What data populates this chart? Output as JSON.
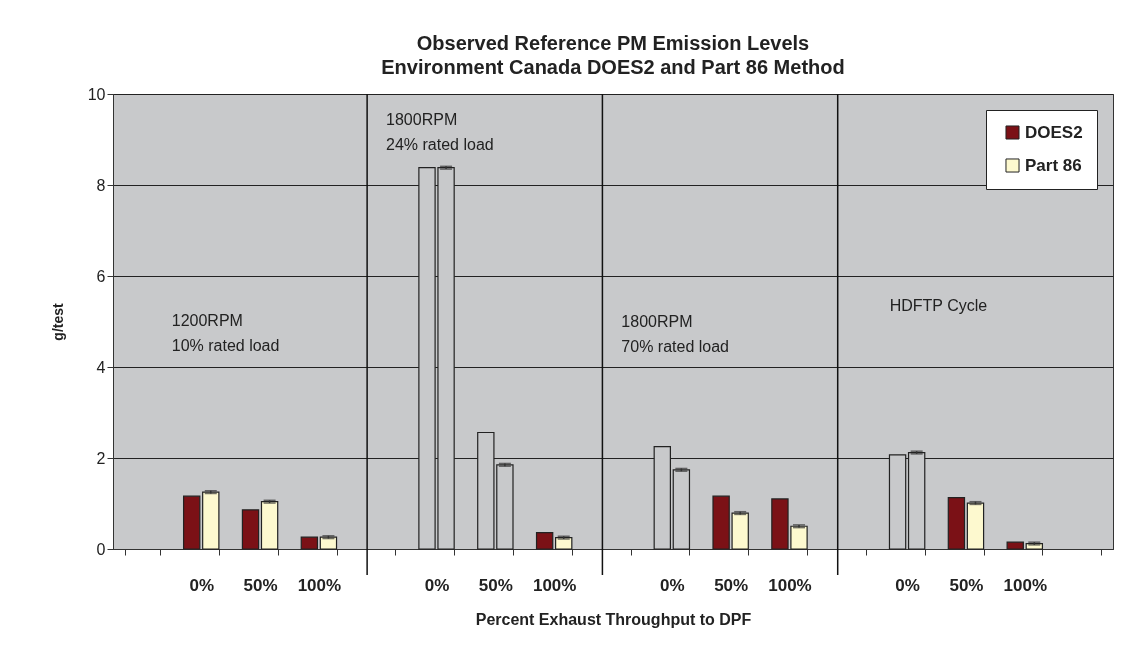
{
  "chart_data": {
    "type": "bar",
    "title": "Observed Reference PM Emission Levels\nEnvironment Canada DOES2 and Part 86 Method",
    "xlabel": "Percent Exhaust Throughput to DPF",
    "ylabel": "g/test",
    "categories": [
      null,
      "0%",
      "50%",
      "100%",
      null,
      "0%",
      "50%",
      "100%",
      null,
      "0%",
      "50%",
      "100%",
      null,
      "0%",
      "50%",
      "100%",
      null
    ],
    "series": [
      {
        "name": "DOES2",
        "color": "#7b1116",
        "values": [
          null,
          1.16,
          0.86,
          0.26,
          null,
          8.38,
          2.56,
          0.36,
          null,
          2.25,
          1.16,
          1.1,
          null,
          2.07,
          1.13,
          0.15,
          null
        ],
        "colors": [
          "#7b1116",
          "#7b1116",
          "#7b1116",
          "#7b1116",
          "#7b1116",
          "#c8c9cb",
          "#c8c9cb",
          "#7b1116",
          "#7b1116",
          "#c8c9cb",
          "#7b1116",
          "#7b1116",
          "#7b1116",
          "#c8c9cb",
          "#7b1116",
          "#7b1116",
          "#7b1116"
        ]
      },
      {
        "name": "Part 86",
        "color": "#fdf9cf",
        "values": [
          null,
          1.25,
          1.04,
          0.26,
          null,
          8.38,
          1.85,
          0.25,
          null,
          1.74,
          0.79,
          0.5,
          null,
          2.12,
          1.01,
          0.12,
          null
        ],
        "colors": [
          "#fdf9cf",
          "#fdf9cf",
          "#fdf9cf",
          "#fdf9cf",
          "#fdf9cf",
          "#c8c9cb",
          "#c8c9cb",
          "#fdf9cf",
          "#fdf9cf",
          "#c8c9cb",
          "#fdf9cf",
          "#fdf9cf",
          "#fdf9cf",
          "#c8c9cb",
          "#fdf9cf",
          "#fdf9cf",
          "#fdf9cf"
        ],
        "errors": [
          null,
          0.03,
          0.03,
          0.03,
          null,
          0.03,
          0.03,
          0.03,
          null,
          0.03,
          0.03,
          0.03,
          null,
          0.03,
          0.03,
          0.03,
          null
        ]
      }
    ],
    "ylim": [
      0,
      10
    ],
    "yticks": [
      0,
      2,
      4,
      6,
      8,
      10
    ],
    "grid": "y",
    "legend": "top right",
    "annotations": [
      "1200RPM\n10% rated load",
      "1800RPM\n24% rated load",
      "1800RPM\n70% rated load",
      "HDFTP Cycle"
    ]
  }
}
